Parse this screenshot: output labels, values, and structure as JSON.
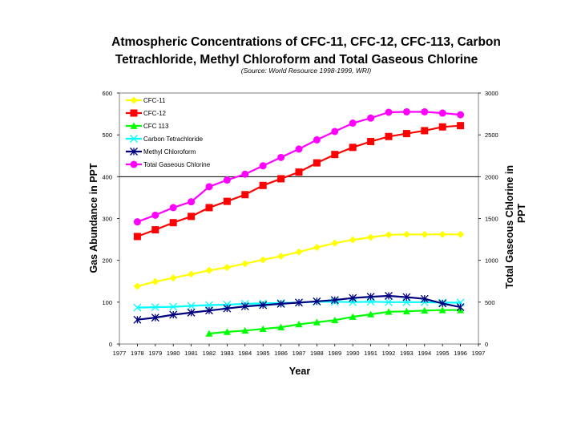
{
  "chart_data": {
    "type": "line",
    "title_line1": "Atmospheric Concentrations of CFC-11, CFC-12, CFC-113, Carbon",
    "title_line2": "Tetrachloride, Methyl Chloroform and Total Gaseous Chlorine",
    "subtitle": "(Source: World Resource 1998-1999, WRI)",
    "xlabel": "Year",
    "ylabel": "Gas Abundance in PPT",
    "y2label_line1": "Total Gaseous Chlorine in",
    "y2label_line2": "PPT",
    "xlim": [
      1977,
      1997
    ],
    "ylim": [
      0,
      600
    ],
    "y2lim": [
      0,
      3000
    ],
    "x_ticks": [
      1977,
      1978,
      1979,
      1980,
      1981,
      1982,
      1983,
      1984,
      1985,
      1986,
      1987,
      1988,
      1989,
      1990,
      1991,
      1992,
      1993,
      1994,
      1995,
      1996,
      1997
    ],
    "y_ticks": [
      0,
      100,
      200,
      300,
      400,
      500,
      600
    ],
    "y2_ticks": [
      0,
      500,
      1000,
      1500,
      2000,
      2500,
      3000
    ],
    "reference_line_y": 400,
    "legend_position": "top-left",
    "series": [
      {
        "name": "CFC-11",
        "color": "#ffff00",
        "marker": "diamond",
        "axis": "left",
        "x": [
          1978,
          1979,
          1980,
          1981,
          1982,
          1983,
          1984,
          1985,
          1986,
          1987,
          1988,
          1989,
          1990,
          1991,
          1992,
          1993,
          1994,
          1995,
          1996
        ],
        "values": [
          138,
          149,
          158,
          167,
          176,
          183,
          192,
          201,
          210,
          220,
          231,
          241,
          249,
          255,
          261,
          262,
          262,
          262,
          262
        ]
      },
      {
        "name": "CFC-12",
        "color": "#ff0000",
        "marker": "square",
        "axis": "left",
        "x": [
          1978,
          1979,
          1980,
          1981,
          1982,
          1983,
          1984,
          1985,
          1986,
          1987,
          1988,
          1989,
          1990,
          1991,
          1992,
          1993,
          1994,
          1995,
          1996
        ],
        "values": [
          257,
          273,
          290,
          305,
          326,
          341,
          357,
          379,
          395,
          411,
          433,
          453,
          470,
          484,
          496,
          503,
          510,
          519,
          522
        ]
      },
      {
        "name": "CFC 113",
        "color": "#00ff00",
        "marker": "triangle",
        "axis": "left",
        "x": [
          1982,
          1983,
          1984,
          1985,
          1986,
          1987,
          1988,
          1989,
          1990,
          1991,
          1992,
          1993,
          1994,
          1995,
          1996
        ],
        "values": [
          25,
          29,
          32,
          36,
          40,
          47,
          52,
          57,
          65,
          71,
          77,
          78,
          80,
          81,
          81
        ]
      },
      {
        "name": "Carbon Tetrachloride",
        "color": "#00ffff",
        "marker": "x",
        "axis": "left",
        "x": [
          1978,
          1979,
          1980,
          1981,
          1982,
          1983,
          1984,
          1985,
          1986,
          1987,
          1988,
          1989,
          1990,
          1991,
          1992,
          1993,
          1994,
          1995,
          1996
        ],
        "values": [
          87,
          88,
          89,
          91,
          93,
          94,
          96,
          97,
          98,
          99,
          101,
          101,
          100,
          101,
          100,
          100,
          100,
          99,
          99
        ]
      },
      {
        "name": "Methyl Chloroform",
        "color": "#000080",
        "marker": "star",
        "axis": "left",
        "x": [
          1978,
          1979,
          1980,
          1981,
          1982,
          1983,
          1984,
          1985,
          1986,
          1987,
          1988,
          1989,
          1990,
          1991,
          1992,
          1993,
          1994,
          1995,
          1996
        ],
        "values": [
          58,
          63,
          70,
          75,
          80,
          85,
          90,
          93,
          96,
          99,
          102,
          105,
          110,
          113,
          115,
          112,
          108,
          97,
          88
        ]
      },
      {
        "name": "Total Gaseous Chlorine",
        "color": "#ff00ff",
        "marker": "circle",
        "axis": "right",
        "x": [
          1978,
          1979,
          1980,
          1981,
          1982,
          1983,
          1984,
          1985,
          1986,
          1987,
          1988,
          1989,
          1990,
          1991,
          1992,
          1993,
          1994,
          1995,
          1996
        ],
        "values": [
          1460,
          1540,
          1630,
          1700,
          1880,
          1960,
          2030,
          2130,
          2230,
          2330,
          2440,
          2540,
          2640,
          2700,
          2770,
          2775,
          2775,
          2760,
          2740
        ]
      }
    ]
  }
}
